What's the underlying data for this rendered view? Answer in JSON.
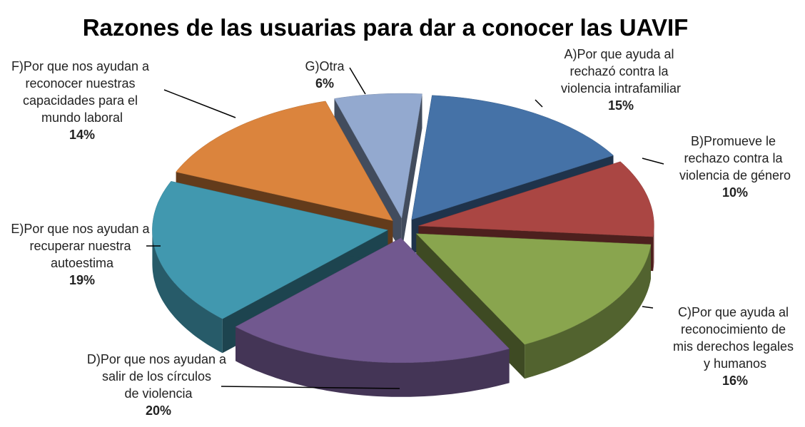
{
  "chart_data": {
    "type": "pie",
    "title": "Razones de las usuarias para dar a conocer las UAVIF",
    "categories": [
      "A)Por que ayuda al rechazó contra la violencia intrafamiliar",
      "B)Promueve le rechazo contra la violencia de género",
      "C)Por que ayuda al reconocimiento de mis derechos legales y humanos",
      "D)Por que nos ayudan a salir de los círculos de violencia",
      "E)Por que nos ayudan a recuperar nuestra autoestima",
      "F)Por que nos ayudan a reconocer nuestras capacidades para el mundo laboral",
      "G)Otra"
    ],
    "values": [
      15,
      10,
      16,
      20,
      19,
      14,
      6
    ],
    "value_labels": [
      "15%",
      "10%",
      "16%",
      "20%",
      "19%",
      "14%",
      "6%"
    ],
    "colors": [
      "#4572a7",
      "#aa4643",
      "#89a54e",
      "#71588f",
      "#4198af",
      "#db843d",
      "#93a9cf"
    ]
  }
}
